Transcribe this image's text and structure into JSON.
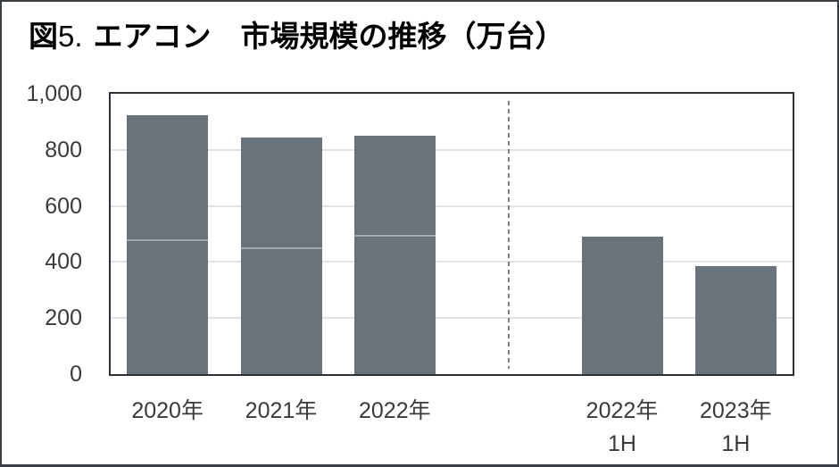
{
  "figure_title": {
    "prefix_bold": "図",
    "number": "5.",
    "main": "エアコン　市場規模の推移（万台）"
  },
  "chart_data": {
    "type": "bar",
    "title": "図5. エアコン　市場規模の推移（万台）",
    "unit": "万台",
    "xlabel": "",
    "ylabel": "",
    "ylim": [
      0,
      1000
    ],
    "grid": true,
    "legend": "none",
    "yticks": [
      {
        "value": 0,
        "label": "0"
      },
      {
        "value": 200,
        "label": "200"
      },
      {
        "value": 400,
        "label": "400"
      },
      {
        "value": 600,
        "label": "600"
      },
      {
        "value": 800,
        "label": "800"
      },
      {
        "value": 1000,
        "label": "1,000"
      }
    ],
    "slots": 6,
    "categories": [
      "2020年",
      "2021年",
      "2022年",
      "2022年\n1H",
      "2023年\n1H"
    ],
    "bars": [
      {
        "slot": 0,
        "label_lines": [
          "2020年"
        ],
        "value": 925,
        "h1_segment_boundary": 475
      },
      {
        "slot": 1,
        "label_lines": [
          "2021年"
        ],
        "value": 845,
        "h1_segment_boundary": 445
      },
      {
        "slot": 2,
        "label_lines": [
          "2022年"
        ],
        "value": 850,
        "h1_segment_boundary": 490
      },
      {
        "slot": 4,
        "label_lines": [
          "2022年",
          "1H"
        ],
        "value": 490,
        "h1_segment_boundary": null
      },
      {
        "slot": 5,
        "label_lines": [
          "2023年",
          "1H"
        ],
        "value": 385,
        "h1_segment_boundary": null
      }
    ],
    "period_divider": {
      "slot": 3,
      "style": "dashed-vertical-line"
    },
    "colors": {
      "bar": "#6a737c",
      "segment_line": "#a0aab1",
      "gridline": "#e0e3e5",
      "axis_frame": "#2d3238",
      "divider_line": "#7f7f7f",
      "tick_text": "#3a3a3a",
      "title_text": "#000000",
      "outer_border": "#3a3f45"
    }
  }
}
